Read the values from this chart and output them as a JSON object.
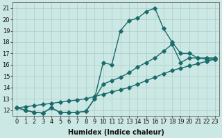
{
  "xlabel": "Humidex (Indice chaleur)",
  "bg_color": "#cce8e4",
  "grid_color": "#b0d0cc",
  "line_color": "#1a6b6b",
  "xlim": [
    -0.5,
    23.5
  ],
  "ylim": [
    11.5,
    21.5
  ],
  "xticks": [
    0,
    1,
    2,
    3,
    4,
    5,
    6,
    7,
    8,
    9,
    10,
    11,
    12,
    13,
    14,
    15,
    16,
    17,
    18,
    19,
    20,
    21,
    22,
    23
  ],
  "yticks": [
    12,
    13,
    14,
    15,
    16,
    17,
    18,
    19,
    20,
    21
  ],
  "line1_x": [
    0,
    1,
    2,
    3,
    4,
    5,
    6,
    7,
    8,
    9,
    10,
    11,
    12,
    13,
    14,
    15,
    16,
    17,
    18,
    19,
    20,
    21,
    22,
    23
  ],
  "line1_y": [
    12.2,
    12.0,
    11.8,
    11.75,
    12.2,
    11.8,
    11.8,
    11.8,
    11.9,
    13.0,
    16.2,
    16.0,
    19.0,
    19.9,
    20.1,
    20.7,
    21.0,
    19.2,
    18.0,
    17.0,
    17.0,
    16.6,
    16.5,
    16.5
  ],
  "line2_x": [
    0,
    1,
    2,
    3,
    4,
    5,
    6,
    7,
    8,
    9,
    10,
    11,
    12,
    13,
    14,
    15,
    16,
    17,
    18,
    19,
    20,
    21,
    22,
    23
  ],
  "line2_y": [
    12.2,
    12.0,
    11.8,
    11.75,
    12.2,
    11.8,
    11.8,
    11.8,
    11.9,
    13.0,
    14.3,
    14.6,
    14.9,
    15.3,
    15.8,
    16.2,
    16.6,
    17.2,
    17.8,
    16.2,
    16.6,
    16.6,
    16.6,
    16.6
  ],
  "line3_x": [
    0,
    1,
    2,
    3,
    4,
    5,
    6,
    7,
    8,
    9,
    10,
    11,
    12,
    13,
    14,
    15,
    16,
    17,
    18,
    19,
    20,
    21,
    22,
    23
  ],
  "line3_y": [
    12.2,
    12.3,
    12.4,
    12.5,
    12.6,
    12.7,
    12.8,
    12.9,
    13.0,
    13.2,
    13.4,
    13.6,
    13.8,
    14.0,
    14.3,
    14.6,
    14.9,
    15.2,
    15.5,
    15.7,
    15.9,
    16.1,
    16.3,
    16.5
  ],
  "marker_size": 2.8,
  "linewidth": 1.0,
  "font_size_label": 7,
  "font_size_tick": 6
}
